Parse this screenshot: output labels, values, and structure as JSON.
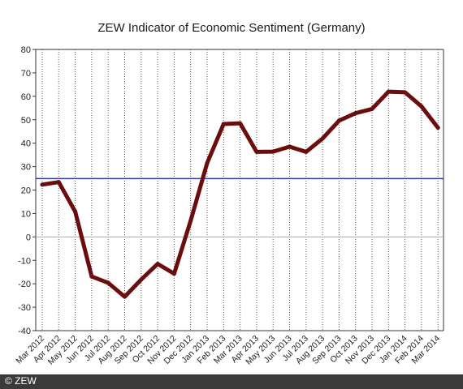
{
  "chart_data": {
    "type": "line",
    "title": "ZEW Indicator of Economic Sentiment (Germany)",
    "xlabel": "",
    "ylabel": "",
    "ylim": [
      -40,
      80
    ],
    "yticks": [
      -40,
      -30,
      -20,
      -10,
      0,
      10,
      20,
      30,
      40,
      50,
      60,
      70,
      80
    ],
    "grid": "vertical dotted",
    "categories": [
      "Mar 2012",
      "Apr 2012",
      "May 2012",
      "Jun 2012",
      "Jul 2012",
      "Aug 2012",
      "Sep 2012",
      "Oct 2012",
      "Nov 2012",
      "Dec 2012",
      "Jan 2013",
      "Feb 2013",
      "Mar 2013",
      "Apr 2013",
      "May 2013",
      "Jun 2013",
      "Jul 2013",
      "Aug 2013",
      "Sep 2013",
      "Oct 2013",
      "Nov 2013",
      "Dec 2013",
      "Jan 2014",
      "Feb 2014",
      "Mar 2014"
    ],
    "series": [
      {
        "values": [
          22.3,
          23.4,
          10.8,
          -16.9,
          -19.6,
          -25.5,
          -18.2,
          -11.5,
          -15.7,
          6.9,
          31.5,
          48.2,
          48.5,
          36.3,
          36.4,
          38.5,
          36.3,
          42.0,
          49.6,
          52.8,
          54.6,
          62.0,
          61.7,
          55.7,
          46.6
        ],
        "color": "#6b0d0d"
      }
    ],
    "reference_line": {
      "value": 24.9,
      "color": "#2b3f9e"
    },
    "zero_line_color": "#aaaaaa"
  },
  "footer": {
    "text": "© ZEW"
  }
}
